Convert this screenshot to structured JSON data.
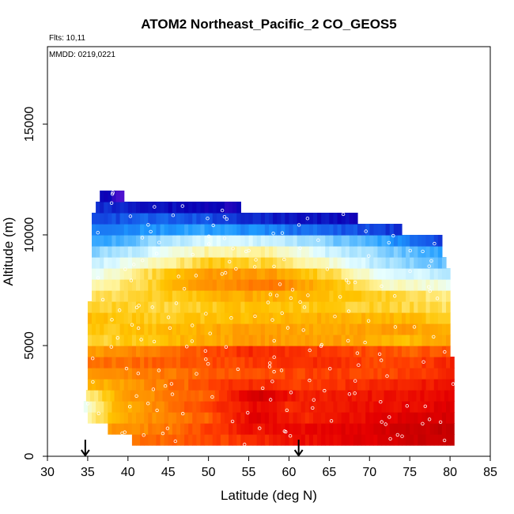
{
  "chart_data": {
    "type": "heatmap",
    "title": "ATOM2 Northeast_Pacific_2 CO_GEOS5",
    "annotations": {
      "flights": "Flts: 10,11",
      "dates": "MMDD: 0219,0221"
    },
    "xlabel": "Latitude (deg N)",
    "ylabel": "Altitude (m)",
    "xlim": [
      30,
      85
    ],
    "ylim": [
      0,
      18500
    ],
    "x_ticks": [
      30,
      35,
      40,
      45,
      50,
      55,
      60,
      65,
      70,
      75,
      80,
      85
    ],
    "y_ticks": [
      0,
      5000,
      10000,
      15000
    ],
    "grid": false,
    "legend": "none",
    "colormap": [
      "#b40000",
      "#e60000",
      "#ff3c00",
      "#ff8c00",
      "#ffc400",
      "#fff5a0",
      "#e8ffff",
      "#9adcff",
      "#1e9bff",
      "#1450e6",
      "#0a00b4",
      "#7a1ee0"
    ],
    "altitude_bins": [
      {
        "altitude": 750,
        "x_range": [
          40.5,
          80.5
        ],
        "profile": [
          [
            40.5,
            0.25
          ],
          [
            50,
            0.2
          ],
          [
            60,
            0.12
          ],
          [
            70,
            0.08
          ],
          [
            75,
            0.05
          ],
          [
            80.5,
            0.02
          ]
        ]
      },
      {
        "altitude": 1250,
        "x_range": [
          37.5,
          80.5
        ],
        "profile": [
          [
            37.5,
            0.3
          ],
          [
            45,
            0.25
          ],
          [
            55,
            0.12
          ],
          [
            65,
            0.1
          ],
          [
            75,
            0.05
          ],
          [
            80.5,
            0.02
          ]
        ]
      },
      {
        "altitude": 1750,
        "x_range": [
          35.0,
          80.5
        ],
        "profile": [
          [
            35,
            0.45
          ],
          [
            40,
            0.3
          ],
          [
            50,
            0.22
          ],
          [
            56,
            0.08
          ],
          [
            62,
            0.15
          ],
          [
            70,
            0.1
          ],
          [
            80.5,
            0.05
          ]
        ]
      },
      {
        "altitude": 2250,
        "x_range": [
          34.5,
          80.5
        ],
        "profile": [
          [
            34.5,
            0.55
          ],
          [
            38,
            0.35
          ],
          [
            45,
            0.25
          ],
          [
            56,
            0.1
          ],
          [
            60,
            0.15
          ],
          [
            70,
            0.12
          ],
          [
            80.5,
            0.08
          ]
        ]
      },
      {
        "altitude": 2750,
        "x_range": [
          34.8,
          80.5
        ],
        "profile": [
          [
            34.8,
            0.45
          ],
          [
            40,
            0.3
          ],
          [
            50,
            0.22
          ],
          [
            56,
            0.05
          ],
          [
            62,
            0.15
          ],
          [
            70,
            0.12
          ],
          [
            80.5,
            0.1
          ]
        ]
      },
      {
        "altitude": 3250,
        "x_range": [
          35.0,
          80.5
        ],
        "profile": [
          [
            35,
            0.35
          ],
          [
            45,
            0.25
          ],
          [
            55,
            0.15
          ],
          [
            62,
            0.18
          ],
          [
            70,
            0.15
          ],
          [
            80.5,
            0.12
          ]
        ]
      },
      {
        "altitude": 3750,
        "x_range": [
          35.0,
          80.5
        ],
        "profile": [
          [
            35,
            0.3
          ],
          [
            45,
            0.25
          ],
          [
            55,
            0.2
          ],
          [
            65,
            0.18
          ],
          [
            72,
            0.2
          ],
          [
            80.5,
            0.15
          ]
        ]
      },
      {
        "altitude": 4250,
        "x_range": [
          35.0,
          80.5
        ],
        "profile": [
          [
            35,
            0.25
          ],
          [
            45,
            0.22
          ],
          [
            55,
            0.18
          ],
          [
            65,
            0.15
          ],
          [
            72,
            0.2
          ],
          [
            80.5,
            0.15
          ]
        ]
      },
      {
        "altitude": 4750,
        "x_range": [
          35.0,
          80.0
        ],
        "profile": [
          [
            35,
            0.3
          ],
          [
            45,
            0.25
          ],
          [
            55,
            0.15
          ],
          [
            65,
            0.18
          ],
          [
            75,
            0.22
          ],
          [
            80,
            0.2
          ]
        ]
      },
      {
        "altitude": 5250,
        "x_range": [
          35.0,
          80.0
        ],
        "profile": [
          [
            35,
            0.4
          ],
          [
            45,
            0.35
          ],
          [
            55,
            0.3
          ],
          [
            65,
            0.3
          ],
          [
            75,
            0.35
          ],
          [
            80,
            0.3
          ]
        ]
      },
      {
        "altitude": 5750,
        "x_range": [
          35.0,
          80.0
        ],
        "profile": [
          [
            35,
            0.38
          ],
          [
            45,
            0.35
          ],
          [
            55,
            0.3
          ],
          [
            65,
            0.32
          ],
          [
            75,
            0.3
          ],
          [
            80,
            0.35
          ]
        ]
      },
      {
        "altitude": 6250,
        "x_range": [
          35.0,
          80.0
        ],
        "profile": [
          [
            35,
            0.35
          ],
          [
            45,
            0.38
          ],
          [
            55,
            0.35
          ],
          [
            65,
            0.33
          ],
          [
            75,
            0.35
          ],
          [
            80,
            0.38
          ]
        ]
      },
      {
        "altitude": 6750,
        "x_range": [
          35.0,
          80.0
        ],
        "profile": [
          [
            35,
            0.38
          ],
          [
            45,
            0.4
          ],
          [
            55,
            0.36
          ],
          [
            65,
            0.38
          ],
          [
            75,
            0.4
          ],
          [
            80,
            0.42
          ]
        ]
      },
      {
        "altitude": 7250,
        "x_range": [
          35.5,
          80.0
        ],
        "profile": [
          [
            35.5,
            0.42
          ],
          [
            45,
            0.38
          ],
          [
            55,
            0.32
          ],
          [
            65,
            0.36
          ],
          [
            75,
            0.4
          ],
          [
            80,
            0.45
          ]
        ]
      },
      {
        "altitude": 7750,
        "x_range": [
          35.5,
          80.0
        ],
        "profile": [
          [
            35.5,
            0.48
          ],
          [
            42,
            0.4
          ],
          [
            50,
            0.28
          ],
          [
            58,
            0.25
          ],
          [
            65,
            0.35
          ],
          [
            72,
            0.48
          ],
          [
            80,
            0.52
          ]
        ]
      },
      {
        "altitude": 8250,
        "x_range": [
          35.5,
          80.0
        ],
        "profile": [
          [
            35.5,
            0.55
          ],
          [
            42,
            0.42
          ],
          [
            50,
            0.3
          ],
          [
            58,
            0.3
          ],
          [
            65,
            0.4
          ],
          [
            72,
            0.55
          ],
          [
            80,
            0.6
          ]
        ]
      },
      {
        "altitude": 8750,
        "x_range": [
          35.5,
          79.5
        ],
        "profile": [
          [
            35.5,
            0.6
          ],
          [
            42,
            0.5
          ],
          [
            50,
            0.38
          ],
          [
            58,
            0.4
          ],
          [
            65,
            0.5
          ],
          [
            72,
            0.62
          ],
          [
            79.5,
            0.68
          ]
        ]
      },
      {
        "altitude": 9250,
        "x_range": [
          35.5,
          79.0
        ],
        "profile": [
          [
            35.5,
            0.65
          ],
          [
            42,
            0.58
          ],
          [
            50,
            0.46
          ],
          [
            58,
            0.46
          ],
          [
            65,
            0.58
          ],
          [
            72,
            0.65
          ],
          [
            79,
            0.72
          ]
        ]
      },
      {
        "altitude": 9750,
        "x_range": [
          35.5,
          79.0
        ],
        "profile": [
          [
            35.5,
            0.72
          ],
          [
            42,
            0.66
          ],
          [
            50,
            0.56
          ],
          [
            58,
            0.58
          ],
          [
            65,
            0.66
          ],
          [
            72,
            0.72
          ],
          [
            79,
            0.84
          ]
        ]
      },
      {
        "altitude": 10250,
        "x_range": [
          35.5,
          74.0
        ],
        "profile": [
          [
            35.5,
            0.76
          ],
          [
            42,
            0.74
          ],
          [
            50,
            0.72
          ],
          [
            58,
            0.76
          ],
          [
            65,
            0.8
          ],
          [
            74,
            0.85
          ]
        ]
      },
      {
        "altitude": 10750,
        "x_range": [
          35.5,
          68.5
        ],
        "profile": [
          [
            35.5,
            0.84
          ],
          [
            42,
            0.8
          ],
          [
            50,
            0.82
          ],
          [
            58,
            0.88
          ],
          [
            68.5,
            0.9
          ]
        ]
      },
      {
        "altitude": 11250,
        "x_range": [
          36.0,
          54.0
        ],
        "profile": [
          [
            36,
            0.86
          ],
          [
            42,
            0.88
          ],
          [
            48,
            0.9
          ],
          [
            54,
            0.92
          ]
        ]
      },
      {
        "altitude": 11750,
        "x_range": [
          36.5,
          39.5
        ],
        "profile": [
          [
            36.5,
            0.9
          ],
          [
            38,
            0.92
          ],
          [
            39.5,
            0.98
          ]
        ]
      }
    ],
    "flight_markers_latitude": [
      34.7,
      61.2
    ]
  }
}
